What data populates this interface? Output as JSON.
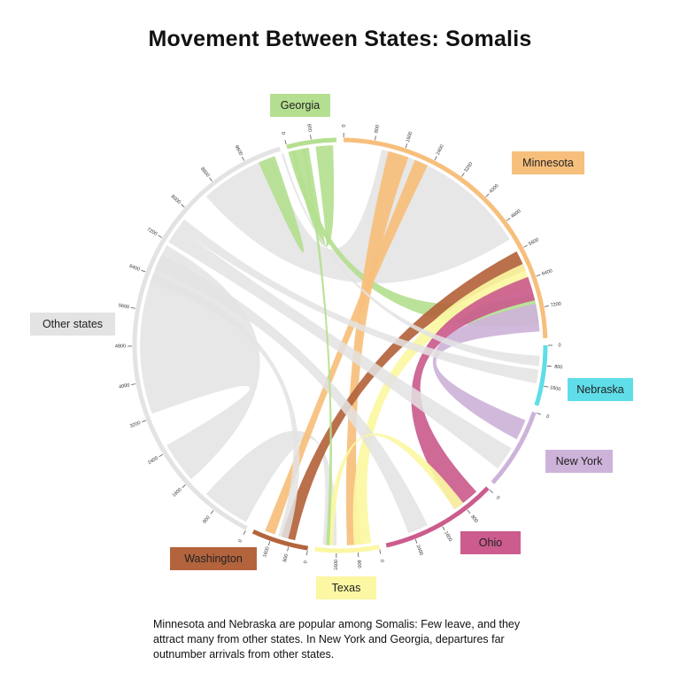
{
  "page": {
    "title": "Movement Between States: Somalis"
  },
  "caption": "Minnesota and Nebraska are popular among Somalis: Few leave, and they attract many from other states. In New York and Georgia, departures far outnumber arrivals from other states.",
  "chart_data": {
    "type": "chord",
    "title": "Movement Between States: Somalis",
    "states": [
      {
        "name": "Minnesota",
        "color": "#f7bf7c",
        "ticks": [
          "0",
          "800",
          "1600",
          "2400",
          "3200",
          "4000",
          "4800",
          "5600",
          "6400",
          "7200"
        ]
      },
      {
        "name": "Nebraska",
        "color": "#5fdde8",
        "ticks": [
          "0",
          "800",
          "1600"
        ]
      },
      {
        "name": "New York",
        "color": "#cdb3d9",
        "ticks": [
          "0"
        ]
      },
      {
        "name": "Ohio",
        "color": "#cb5c8d",
        "ticks": [
          "0",
          "800",
          "1600",
          "2400"
        ]
      },
      {
        "name": "Texas",
        "color": "#fbf7a3",
        "ticks": [
          "0",
          "800",
          "1600"
        ]
      },
      {
        "name": "Washington",
        "color": "#b3643c",
        "ticks": [
          "0",
          "800",
          "1600"
        ]
      },
      {
        "name": "Other states",
        "color": "#e3e3e3",
        "ticks": [
          "0",
          "800",
          "1600",
          "2400",
          "3200",
          "4000",
          "4800",
          "5600",
          "6400",
          "7200",
          "8000",
          "8800",
          "9600"
        ]
      },
      {
        "name": "Georgia",
        "color": "#b4df90",
        "ticks": [
          "0",
          "800"
        ]
      }
    ]
  }
}
